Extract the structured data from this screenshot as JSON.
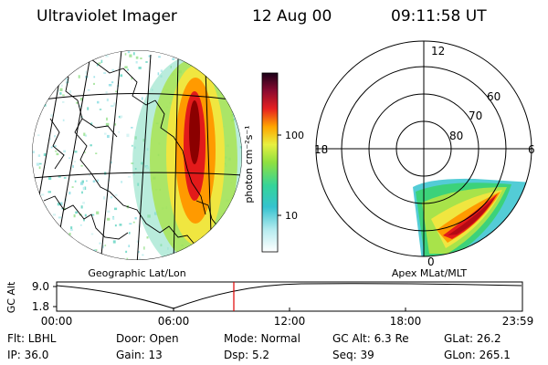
{
  "header": {
    "instrument": "Ultraviolet Imager",
    "date": "12 Aug 00",
    "time": "09:11:58 UT"
  },
  "left_panel": {
    "caption": "Geographic Lat/Lon"
  },
  "right_panel": {
    "caption": "Apex MLat/MLT",
    "mlt_labels": {
      "top": "12",
      "left": "18",
      "right": "6",
      "bottom": "0"
    },
    "lat_labels": [
      "60",
      "70",
      "80"
    ]
  },
  "colorbar": {
    "unit_label": "photon cm⁻²s⁻¹",
    "ticks": [
      "100",
      "10"
    ]
  },
  "altitude_plot": {
    "ylabel": "GC Alt",
    "yticks": [
      "9.0",
      "1.8"
    ],
    "xticks": [
      "00:00",
      "06:00",
      "12:00",
      "18:00",
      "23:59"
    ]
  },
  "footer": {
    "row1": [
      "Flt: LBHL",
      "Door: Open",
      "Mode: Normal",
      "GC Alt: 6.3 Re",
      "GLat:  26.2"
    ],
    "row2": [
      "IP: 36.0",
      "Gain: 13",
      "Dsp:     5.2",
      "Seq: 39",
      "GLon: 265.1"
    ]
  }
}
